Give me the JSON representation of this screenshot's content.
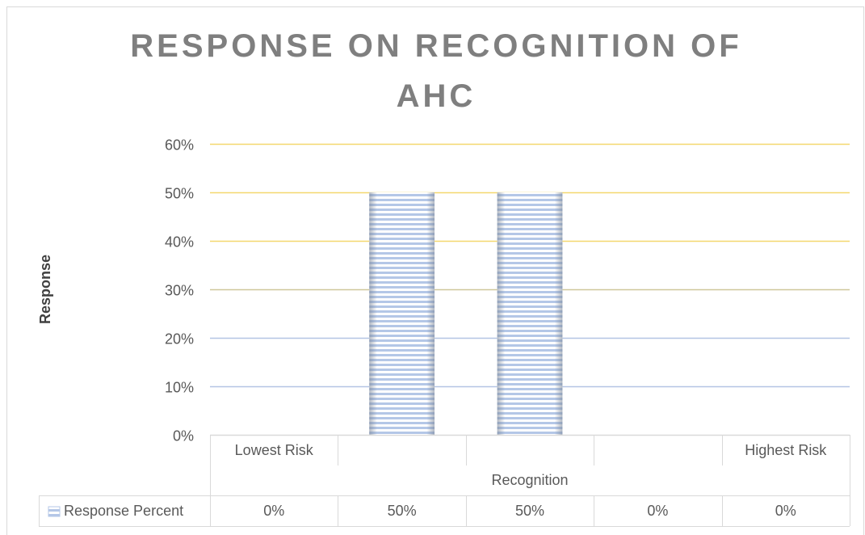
{
  "chart_data": {
    "type": "bar",
    "title": "RESPONSE ON RECOGNITION OF AHC",
    "x_label": "Recognition",
    "y_label": "Response",
    "categories": [
      "Lowest Risk",
      null,
      null,
      null,
      "Highest Risk"
    ],
    "series": [
      {
        "name": "Response Percent",
        "color": "#b4c7e7",
        "values": [
          0,
          50,
          50,
          0,
          0
        ],
        "value_labels": [
          "0%",
          "50%",
          "50%",
          "0%",
          "0%"
        ]
      }
    ],
    "ylim": [
      0,
      60
    ],
    "yticks": [
      {
        "value": 0,
        "label": "0%"
      },
      {
        "value": 10,
        "label": "10%"
      },
      {
        "value": 20,
        "label": "20%"
      },
      {
        "value": 30,
        "label": "30%"
      },
      {
        "value": 40,
        "label": "40%"
      },
      {
        "value": 50,
        "label": "50%"
      },
      {
        "value": 60,
        "label": "60%"
      }
    ],
    "grid": true,
    "grid_colors": [
      "#d9d9d9",
      "#b4c4e4",
      "#b4c4e4",
      "#cfc79a",
      "#f4d86e",
      "#f4d86e",
      "#f4d86e"
    ],
    "legend": "data-table"
  }
}
